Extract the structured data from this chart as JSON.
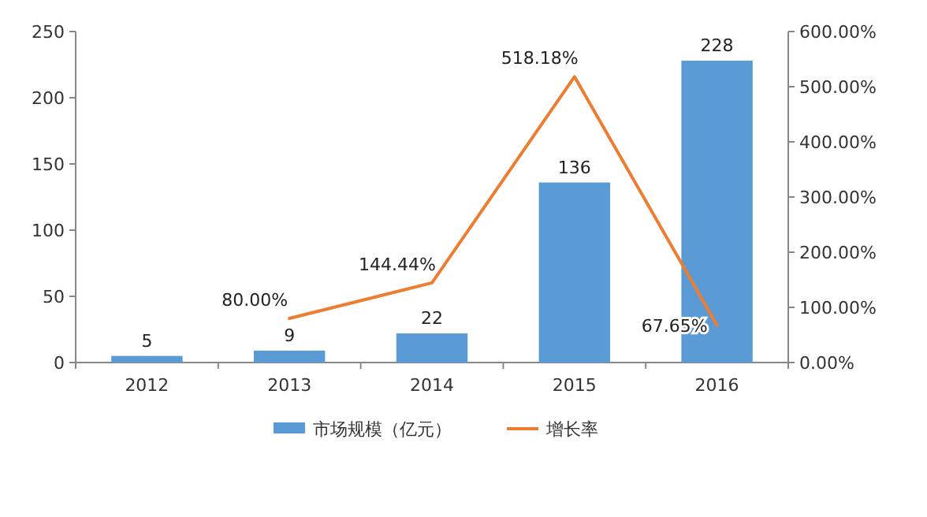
{
  "chart_data": {
    "type": "bar",
    "categories": [
      "2012",
      "2013",
      "2014",
      "2015",
      "2016"
    ],
    "series": [
      {
        "name": "市场规模（亿元）",
        "color": "#5b9bd5",
        "values": [
          5,
          9,
          22,
          136,
          228
        ],
        "value_labels": [
          "5",
          "9",
          "22",
          "136",
          "228"
        ]
      },
      {
        "name": "增长率",
        "type": "line",
        "axis": "y2",
        "color": "#ed7d31",
        "values": [
          null,
          80.0,
          144.44,
          518.18,
          67.65
        ],
        "value_labels": [
          null,
          "80.00%",
          "144.44%",
          "518.18%",
          "67.65%"
        ]
      }
    ],
    "ylim": [
      0,
      250
    ],
    "yticks": [
      0,
      50,
      100,
      150,
      200,
      250
    ],
    "y2lim": [
      0,
      600
    ],
    "y2ticks": [
      {
        "value": 0,
        "label": "0.00%"
      },
      {
        "value": 100,
        "label": "100.00%"
      },
      {
        "value": 200,
        "label": "200.00%"
      },
      {
        "value": 300,
        "label": "300.00%"
      },
      {
        "value": 400,
        "label": "400.00%"
      },
      {
        "value": 500,
        "label": "500.00%"
      },
      {
        "value": 600,
        "label": "600.00%"
      }
    ],
    "legend": "bottom",
    "marker": "none"
  }
}
